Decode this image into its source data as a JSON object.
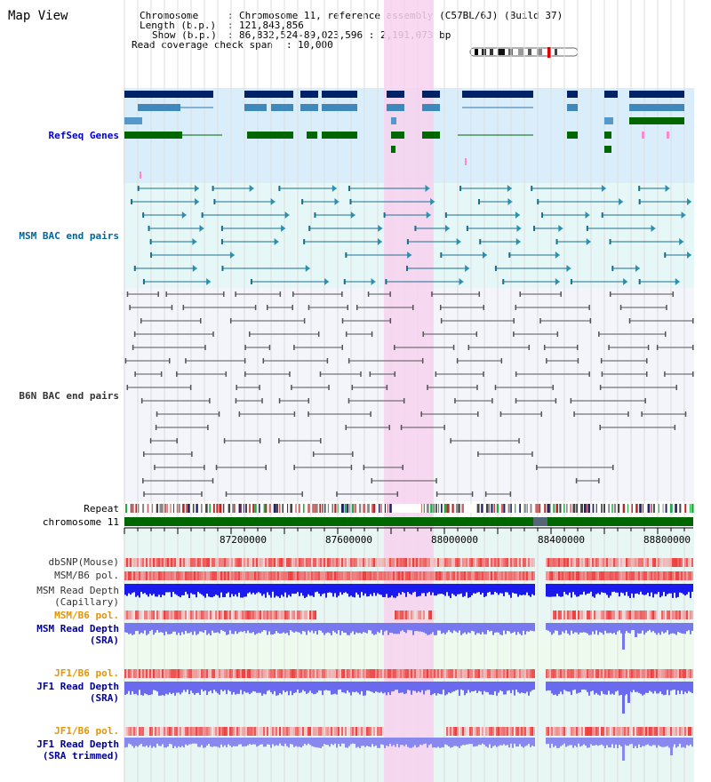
{
  "view_title": "Map View",
  "info": {
    "chromosome_label": "Chromosome",
    "chromosome_value": "Chromosome 11, reference assembly (C57BL/6J) (Build 37)",
    "length_label": "Length (b.p.)",
    "length_value": "121,843,856",
    "show_label": "Show (b.p.)",
    "show_value": "86,832,524-89,023,596 : 2,191,073 bp",
    "coverage_label": "Read coverage check span",
    "coverage_value": "10,000"
  },
  "tracks": {
    "refseq": {
      "label": "RefSeq Genes",
      "color": "#0000cc"
    },
    "msm_bac": {
      "label": "MSM BAC end pairs",
      "color": "#006699"
    },
    "b6n_bac": {
      "label": "B6N BAC end pairs",
      "color": "#333333"
    },
    "repeat": {
      "label": "Repeat"
    },
    "chrom": {
      "label": "chromosome 11"
    },
    "dbsnp": {
      "label": "dbSNP(Mouse)"
    },
    "msm_pol": {
      "label": "MSM/B6 pol."
    },
    "msm_depth_cap": {
      "label_line1": "MSM Read Depth",
      "label_line2": "(Capillary)"
    },
    "msm_pol2": {
      "label": "MSM/B6 pol.",
      "color": "#e69500"
    },
    "msm_depth_sra": {
      "label_line1": "MSM Read Depth",
      "label_line2": "(SRA)"
    },
    "jf1_pol": {
      "label": "JF1/B6 pol.",
      "color": "#e69500"
    },
    "jf1_depth_sra": {
      "label_line1": "JF1 Read Depth",
      "label_line2": "(SRA)"
    },
    "jf1_pol2": {
      "label": "JF1/B6 pol.",
      "color": "#e69500"
    },
    "jf1_depth_trim": {
      "label_line1": "JF1 Read Depth",
      "label_line2": "(SRA trimmed)"
    }
  },
  "ruler": {
    "ticks": [
      "87200000",
      "87600000",
      "88000000",
      "88400000",
      "88800000"
    ]
  },
  "colors": {
    "refseq_bg": "#d9eefa",
    "msm_bg": "#e6f7f7",
    "highlight": "#f7d2ee",
    "chrom_bar": "#006600",
    "snp_red": "#ee2222",
    "depth_blue": "#1a1aee",
    "depth_light": "#7777ee"
  }
}
